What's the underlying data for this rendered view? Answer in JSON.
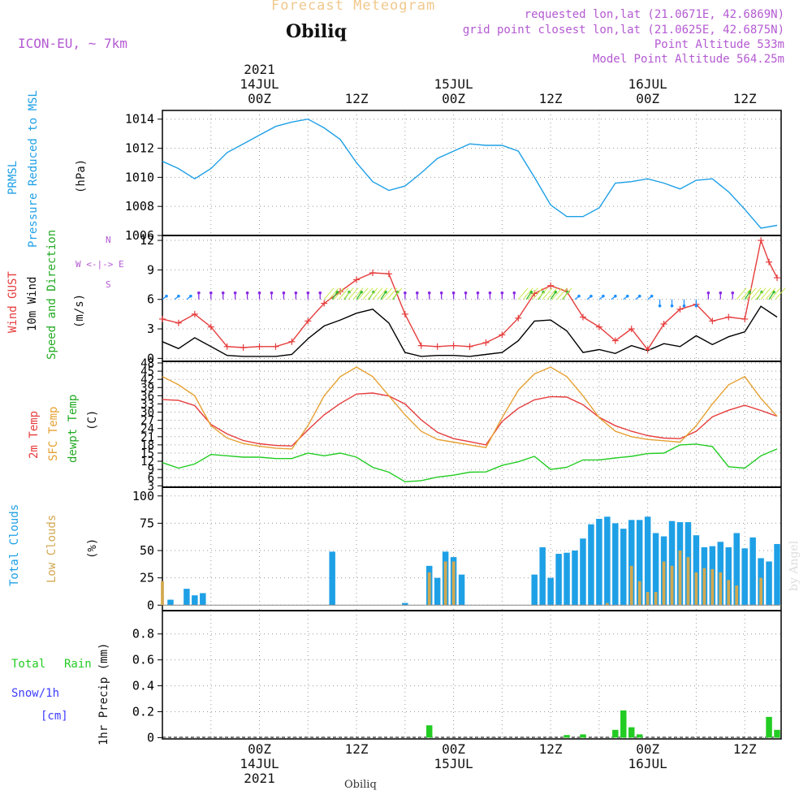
{
  "header": {
    "title": "Forecast Meteogram",
    "location": "Obiliq",
    "model": "ICON-EU, ~ 7km",
    "requested": "requested lon,lat (21.0671E, 42.6869N)",
    "gridpoint": "grid point closest lon,lat (21.0625E, 42.6875N)",
    "point_alt": "Point Altitude 533m",
    "model_alt": "Model Point Altitude 564.25m",
    "watermark": "by Angel",
    "footer": "Obiliq"
  },
  "colors": {
    "pressure": "#1ea0e6",
    "gust": "#e63c3c",
    "wind": "#000000",
    "arrows": "#22bb22",
    "t2m": "#e63c3c",
    "sfc": "#e6a032",
    "dew": "#22cc22",
    "total_clouds": "#1ea0e6",
    "low_clouds": "#d2a850",
    "rain": "#22cc22",
    "snow": "#3c3cff",
    "label_purple": "#b45ad2",
    "title_orange": "#f0c88c"
  },
  "time_axis": {
    "top": [
      {
        "hour": 12,
        "lines": [
          "2021",
          "14JUL",
          "00Z"
        ]
      },
      {
        "hour": 24,
        "lines": [
          "12Z"
        ]
      },
      {
        "hour": 36,
        "lines": [
          "15JUL",
          "00Z"
        ]
      },
      {
        "hour": 48,
        "lines": [
          "12Z"
        ]
      },
      {
        "hour": 60,
        "lines": [
          "16JUL",
          "00Z"
        ]
      },
      {
        "hour": 72,
        "lines": [
          "12Z"
        ]
      }
    ],
    "bottom": [
      {
        "hour": 12,
        "lines": [
          "00Z",
          "14JUL",
          "2021"
        ]
      },
      {
        "hour": 24,
        "lines": [
          "12Z"
        ]
      },
      {
        "hour": 36,
        "lines": [
          "00Z",
          "15JUL"
        ]
      },
      {
        "hour": 48,
        "lines": [
          "12Z"
        ]
      },
      {
        "hour": 60,
        "lines": [
          "00Z",
          "16JUL"
        ]
      },
      {
        "hour": 72,
        "lines": [
          "12Z"
        ]
      }
    ]
  },
  "panel_labels": {
    "pressure": [
      "PRMSL",
      "Pressure Reduced to MSL",
      "(hPa)"
    ],
    "wind": [
      "Wind GUST",
      "10m Wind",
      "Speed and Direction",
      "(m/s)"
    ],
    "compass": [
      "N",
      "W <-|-> E",
      "S"
    ],
    "temp": [
      "2m Temp",
      "SFC Temp",
      "dewpt Temp",
      "(C)"
    ],
    "clouds": [
      "Total Clouds",
      "Low Clouds",
      "(%)"
    ],
    "precip": [
      "Total",
      "Rain",
      "Snow/1h",
      "[cm]",
      "1hr Precip (mm)"
    ]
  },
  "chart_data": [
    {
      "type": "line",
      "name": "pressure",
      "ylabel": "(hPa)",
      "ylim": [
        1006,
        1014.6
      ],
      "yticks": [
        {
          "v": 1006,
          "label": "1006"
        },
        {
          "v": 1008,
          "label": "1008"
        },
        {
          "v": 1010,
          "label": "1010"
        },
        {
          "v": 1012,
          "label": "1012"
        },
        {
          "v": 1014,
          "label": "1014"
        }
      ],
      "series": [
        {
          "name": "PRMSL",
          "color": "#1ea0e6",
          "x": [
            0,
            2,
            4,
            6,
            8,
            10,
            12,
            14,
            16,
            18,
            20,
            22,
            24,
            26,
            28,
            30,
            32,
            34,
            36,
            38,
            40,
            42,
            44,
            46,
            48,
            50,
            52,
            54,
            56,
            58,
            60,
            62,
            64,
            66,
            68,
            70,
            72,
            74,
            76
          ],
          "y": [
            1011.1,
            1010.6,
            1009.9,
            1010.6,
            1011.7,
            1012.3,
            1012.9,
            1013.5,
            1013.8,
            1014.0,
            1013.4,
            1012.6,
            1011.0,
            1009.7,
            1009.1,
            1009.4,
            1010.3,
            1011.3,
            1011.8,
            1012.3,
            1012.2,
            1012.2,
            1011.8,
            1010.0,
            1008.1,
            1007.3,
            1007.3,
            1007.9,
            1009.6,
            1009.7,
            1009.9,
            1009.6,
            1009.2,
            1009.8,
            1009.9,
            1009.0,
            1007.8,
            1006.5,
            1006.7
          ]
        }
      ]
    },
    {
      "type": "line",
      "name": "wind",
      "ylabel": "(m/s)",
      "ylim": [
        -0.3,
        12.5
      ],
      "yticks": [
        {
          "v": 0,
          "label": "0"
        },
        {
          "v": 3,
          "label": "3"
        },
        {
          "v": 6,
          "label": "6"
        },
        {
          "v": 9,
          "label": "9"
        },
        {
          "v": 12,
          "label": "12"
        }
      ],
      "series": [
        {
          "name": "Wind GUST",
          "color": "#e63c3c",
          "marker": "+",
          "x": [
            0,
            2,
            4,
            6,
            8,
            10,
            12,
            14,
            16,
            18,
            20,
            22,
            24,
            26,
            28,
            30,
            32,
            34,
            36,
            38,
            40,
            42,
            44,
            46,
            48,
            50,
            52,
            54,
            56,
            58,
            60,
            62,
            64,
            66,
            68,
            70,
            72,
            74,
            75,
            76
          ],
          "y": [
            4.0,
            3.6,
            4.5,
            3.2,
            1.2,
            1.1,
            1.2,
            1.2,
            1.7,
            3.8,
            5.6,
            6.8,
            8.0,
            8.7,
            8.6,
            4.5,
            1.3,
            1.2,
            1.3,
            1.2,
            1.6,
            2.4,
            4.1,
            6.6,
            7.4,
            6.8,
            4.2,
            3.2,
            1.8,
            3.0,
            0.9,
            3.5,
            5.0,
            5.5,
            3.8,
            4.2,
            4.0,
            12.0,
            9.8,
            8.2
          ]
        },
        {
          "name": "10m Wind",
          "color": "#000000",
          "x": [
            0,
            2,
            4,
            6,
            8,
            10,
            12,
            14,
            16,
            18,
            20,
            22,
            24,
            26,
            28,
            30,
            32,
            34,
            36,
            38,
            40,
            42,
            44,
            46,
            48,
            50,
            52,
            54,
            56,
            58,
            60,
            62,
            64,
            66,
            68,
            70,
            72,
            74,
            76
          ],
          "y": [
            1.7,
            1.0,
            2.1,
            1.2,
            0.3,
            0.2,
            0.2,
            0.2,
            0.4,
            2.0,
            3.3,
            3.9,
            4.6,
            5.0,
            3.6,
            0.6,
            0.2,
            0.3,
            0.3,
            0.2,
            0.4,
            0.6,
            1.8,
            3.8,
            3.9,
            2.8,
            0.6,
            0.9,
            0.5,
            1.3,
            0.8,
            1.5,
            1.2,
            2.3,
            1.4,
            2.2,
            2.7,
            5.3,
            4.2
          ]
        }
      ],
      "direction_arrows": "purple/blue/green wind barbs along the 6 m/s line"
    },
    {
      "type": "line",
      "name": "temperature",
      "ylabel": "(C)",
      "ylim": [
        2.5,
        48.6
      ],
      "yticks": [
        {
          "v": 3,
          "label": "3"
        },
        {
          "v": 6,
          "label": "6"
        },
        {
          "v": 9,
          "label": "9"
        },
        {
          "v": 12,
          "label": "12"
        },
        {
          "v": 15,
          "label": "15"
        },
        {
          "v": 18,
          "label": "18"
        },
        {
          "v": 21,
          "label": "21"
        },
        {
          "v": 24,
          "label": "24"
        },
        {
          "v": 27,
          "label": "27"
        },
        {
          "v": 30,
          "label": "30"
        },
        {
          "v": 33,
          "label": "33"
        },
        {
          "v": 36,
          "label": "36"
        },
        {
          "v": 39,
          "label": "39"
        },
        {
          "v": 42,
          "label": "42"
        },
        {
          "v": 45,
          "label": "45"
        },
        {
          "v": 48,
          "label": "48"
        }
      ],
      "series": [
        {
          "name": "2m Temp",
          "color": "#e63c3c",
          "x": [
            0,
            2,
            4,
            6,
            8,
            10,
            12,
            14,
            16,
            18,
            20,
            22,
            24,
            26,
            28,
            30,
            32,
            34,
            36,
            38,
            40,
            42,
            44,
            46,
            48,
            50,
            52,
            54,
            56,
            58,
            60,
            62,
            64,
            66,
            68,
            70,
            72,
            74,
            76
          ],
          "y": [
            34.6,
            34.3,
            32.4,
            25.5,
            22.0,
            19.6,
            18.4,
            17.8,
            17.6,
            23.5,
            29.0,
            33.2,
            36.6,
            37.0,
            35.9,
            33.0,
            27.2,
            22.6,
            20.3,
            19.2,
            18.0,
            26.6,
            31.4,
            34.5,
            35.7,
            35.5,
            32.7,
            28.1,
            25.0,
            23.0,
            21.4,
            20.5,
            20.3,
            23.0,
            28.3,
            30.7,
            32.5,
            30.6,
            28.5
          ]
        },
        {
          "name": "SFC Temp",
          "color": "#e6a032",
          "x": [
            0,
            2,
            4,
            6,
            8,
            10,
            12,
            14,
            16,
            18,
            20,
            22,
            24,
            26,
            28,
            30,
            32,
            34,
            36,
            38,
            40,
            42,
            44,
            46,
            48,
            50,
            52,
            54,
            56,
            58,
            60,
            62,
            64,
            66,
            68,
            70,
            72,
            74,
            76
          ],
          "y": [
            43.0,
            40.0,
            36.0,
            25.0,
            20.5,
            18.5,
            17.5,
            16.8,
            16.5,
            25.0,
            36.0,
            43.0,
            46.5,
            43.0,
            36.0,
            29.0,
            23.0,
            20.0,
            19.0,
            18.0,
            17.0,
            28.0,
            38.0,
            44.0,
            46.5,
            43.0,
            36.0,
            28.0,
            23.0,
            21.0,
            20.0,
            19.5,
            19.0,
            25.0,
            33.0,
            40.0,
            43.0,
            35.0,
            28.5
          ]
        },
        {
          "name": "dewpt Temp",
          "color": "#22cc22",
          "x": [
            0,
            2,
            4,
            6,
            8,
            10,
            12,
            14,
            16,
            18,
            20,
            22,
            24,
            26,
            28,
            30,
            32,
            34,
            36,
            38,
            40,
            42,
            44,
            46,
            48,
            50,
            52,
            54,
            56,
            58,
            60,
            62,
            64,
            66,
            68,
            70,
            72,
            74,
            76
          ],
          "y": [
            11.5,
            9.5,
            11.0,
            14.5,
            14.0,
            13.5,
            13.5,
            13.0,
            13.0,
            15.0,
            14.0,
            15.0,
            13.5,
            9.8,
            8.0,
            4.5,
            4.9,
            6.2,
            6.9,
            8.0,
            8.1,
            10.5,
            11.8,
            13.8,
            9.0,
            9.8,
            12.5,
            12.5,
            13.2,
            13.8,
            14.8,
            15.0,
            18.0,
            18.3,
            17.4,
            10.0,
            9.5,
            14.0,
            16.5
          ]
        }
      ]
    },
    {
      "type": "bar",
      "name": "clouds",
      "ylabel": "(%)",
      "ylim": [
        -5,
        108
      ],
      "yticks": [
        {
          "v": 0,
          "label": "0"
        },
        {
          "v": 25,
          "label": "25"
        },
        {
          "v": 50,
          "label": "50"
        },
        {
          "v": 75,
          "label": "75"
        },
        {
          "v": 100,
          "label": "100"
        }
      ],
      "series": [
        {
          "name": "Total Clouds",
          "color": "#1ea0e6",
          "hours": [
            1,
            3,
            4,
            5,
            21,
            30,
            33,
            34,
            35,
            36,
            37,
            46,
            47,
            48,
            49,
            50,
            51,
            52,
            53,
            54,
            55,
            56,
            57,
            58,
            59,
            60,
            61,
            62,
            63,
            64,
            65,
            66,
            67,
            68,
            69,
            70,
            71,
            72,
            73,
            74,
            75,
            76
          ],
          "values": [
            5,
            15,
            9,
            11,
            49,
            2,
            36,
            25,
            49,
            44,
            28,
            28,
            53,
            25,
            47,
            48,
            50,
            61,
            74,
            79,
            81,
            75,
            70,
            78,
            78,
            81,
            66,
            63,
            77,
            76,
            76,
            64,
            53,
            54,
            58,
            53,
            66,
            52,
            62,
            43,
            40,
            56
          ]
        },
        {
          "name": "Low Clouds",
          "color": "#d2a850",
          "hours": [
            0,
            33,
            35,
            36,
            55,
            58,
            59,
            60,
            61,
            62,
            63,
            64,
            65,
            66,
            67,
            68,
            69,
            70,
            71,
            74
          ],
          "values": [
            22,
            30,
            40,
            40,
            2,
            36,
            22,
            12,
            12,
            40,
            36,
            50,
            44,
            30,
            34,
            33,
            30,
            23,
            18,
            25
          ]
        }
      ]
    },
    {
      "type": "bar",
      "name": "precip",
      "ylabel": "1hr Precip (mm)",
      "ylim": [
        -0.01,
        0.98
      ],
      "yticks": [
        {
          "v": 0,
          "label": "0"
        },
        {
          "v": 0.2,
          "label": "0.2"
        },
        {
          "v": 0.4,
          "label": "0.4"
        },
        {
          "v": 0.6,
          "label": "0.6"
        },
        {
          "v": 0.8,
          "label": "0.8"
        }
      ],
      "series": [
        {
          "name": "Total Rain",
          "color": "#22cc22",
          "hours": [
            33,
            50,
            52,
            56,
            57,
            58,
            59,
            75,
            76
          ],
          "values": [
            0.095,
            0.02,
            0.025,
            0.06,
            0.21,
            0.08,
            0.025,
            0.16,
            0.06
          ]
        }
      ]
    }
  ]
}
